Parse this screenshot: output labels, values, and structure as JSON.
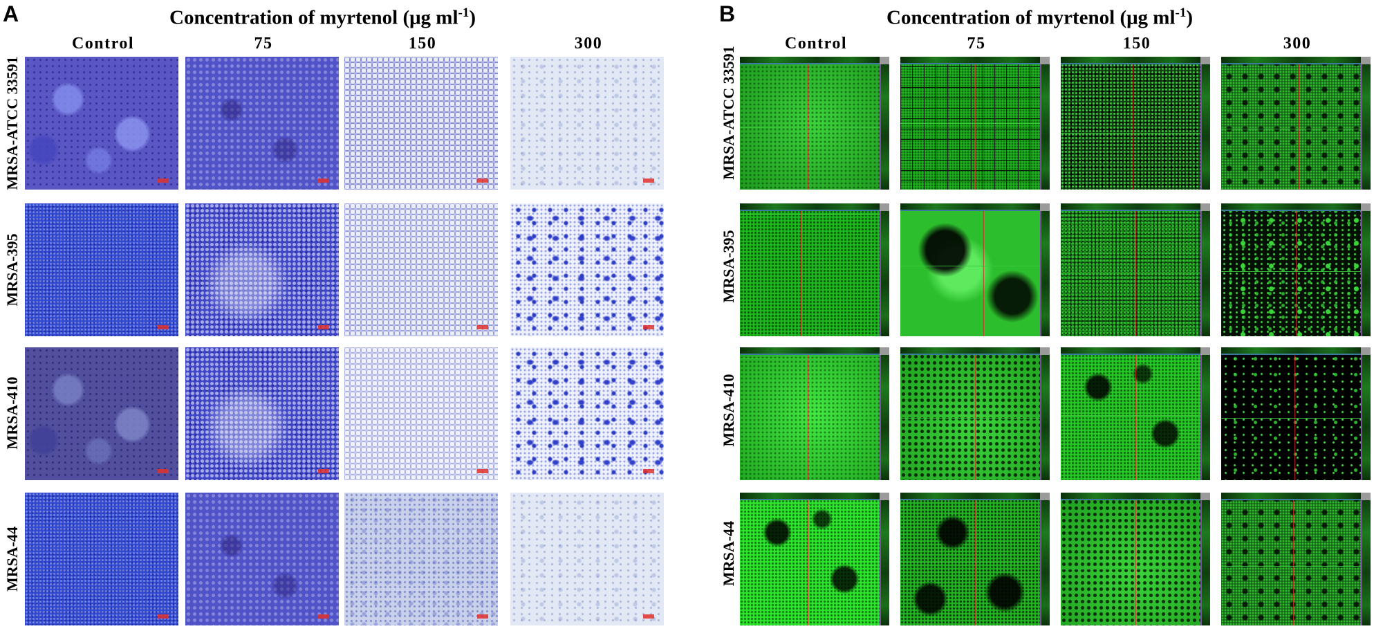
{
  "panel_a": {
    "letter": "A",
    "title_main": "Concentration of myrtenol (μg ml",
    "title_exp": "-1",
    "title_close": ")",
    "columns": [
      "Control",
      "75",
      "150",
      "300"
    ],
    "rows": [
      "MRSA-ATCC 33591",
      "MRSA-395",
      "MRSA-410",
      "MRSA-44"
    ]
  },
  "panel_b": {
    "letter": "B",
    "title_main": "Concentration of myrtenol (μg ml",
    "title_exp": "-1",
    "title_close": ")",
    "columns": [
      "Control",
      "75",
      "150",
      "300"
    ],
    "rows": [
      "MRSA-ATCC 33591",
      "MRSA-395",
      "MRSA-410",
      "MRSA-44"
    ]
  },
  "colors": {
    "crystal_violet_stain": "#3d44c8",
    "confocal_green": "#22c022",
    "crosshair_red": "#dc2828"
  }
}
